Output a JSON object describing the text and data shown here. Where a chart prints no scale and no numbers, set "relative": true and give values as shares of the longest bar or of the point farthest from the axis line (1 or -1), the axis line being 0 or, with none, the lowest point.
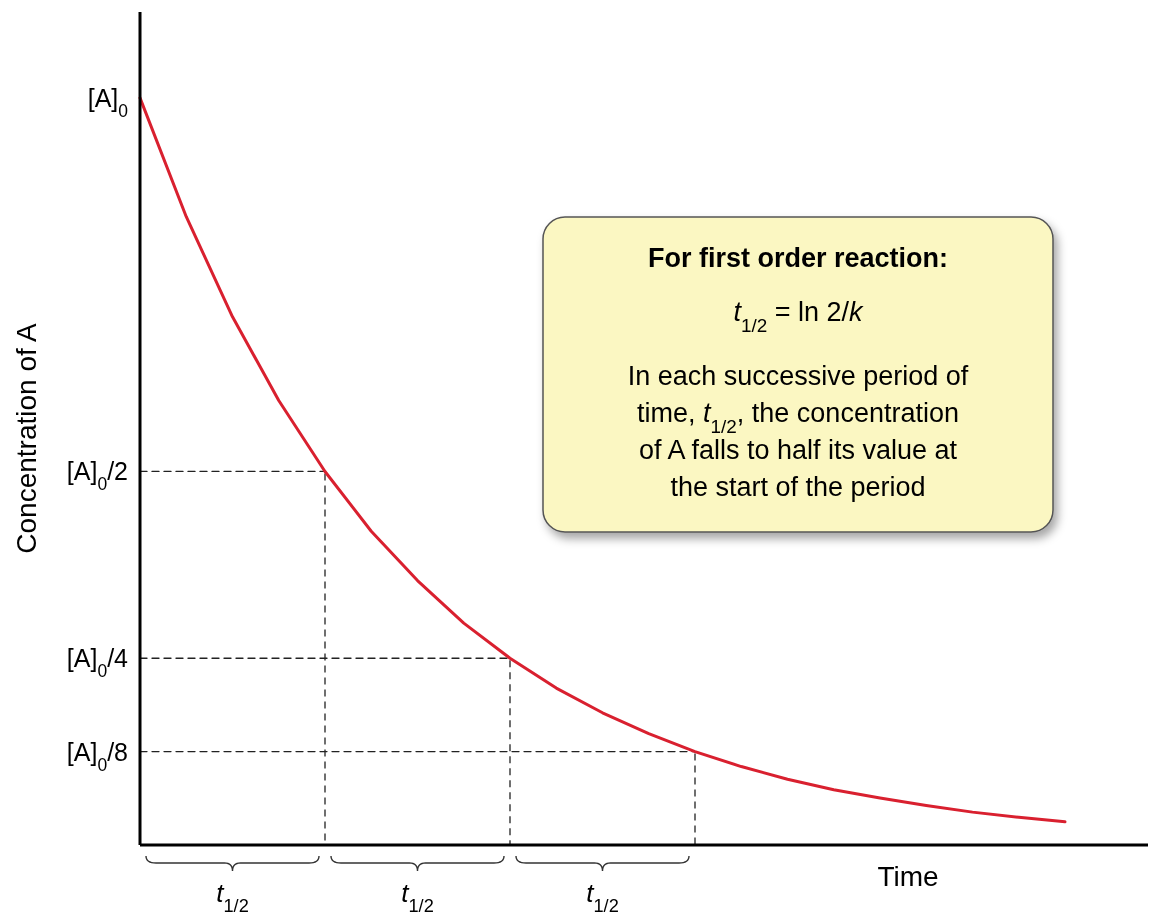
{
  "chart_data": {
    "type": "line",
    "xlabel": "Time",
    "ylabel": "Concentration of A",
    "relative": true,
    "categories": [
      null,
      null,
      null,
      null,
      null,
      null,
      null,
      null,
      null,
      null,
      null,
      null,
      null,
      null,
      null,
      null,
      null,
      null,
      null,
      null,
      null
    ],
    "grid": false,
    "marker": "none",
    "series": [
      {
        "color": "#d9202f",
        "line_style": "solid",
        "values": [
          1,
          0.841,
          0.707,
          0.595,
          0.5,
          0.42,
          0.354,
          0.297,
          0.25,
          0.21,
          0.177,
          0.149,
          0.125,
          0.105,
          0.088,
          0.074,
          0.063,
          0.053,
          0.044,
          0.037,
          0.031
        ]
      },
      {
        "color": "#222222",
        "line_style": "dashed",
        "values": [
          0.5,
          0.5,
          0.5,
          0.5,
          0.5,
          null,
          null,
          null,
          null,
          null,
          null,
          null,
          null,
          null,
          null,
          null,
          null,
          null,
          null,
          null,
          null
        ]
      },
      {
        "color": "#222222",
        "line_style": "dashed",
        "values": [
          0.25,
          0.25,
          0.25,
          0.25,
          0.25,
          0.25,
          0.25,
          0.25,
          0.25,
          null,
          null,
          null,
          null,
          null,
          null,
          null,
          null,
          null,
          null,
          null,
          null
        ]
      },
      {
        "color": "#222222",
        "line_style": "dashed",
        "values": [
          0.125,
          0.125,
          0.125,
          0.125,
          0.125,
          0.125,
          0.125,
          0.125,
          0.125,
          0.125,
          0.125,
          0.125,
          0.125,
          null,
          null,
          null,
          null,
          null,
          null,
          null,
          null
        ]
      }
    ],
    "annotations": [
      "For first order reaction:",
      "t$_{1/2}$ = ln 2/k",
      "In each successive period of time, t$_{1/2}$, the concentration of A falls to half its value at the start of the period",
      "t$_{1/2}$",
      "t$_{1/2}$",
      "t$_{1/2}$",
      "[A]$_{0}$",
      "[A]$_{0}$/2",
      "[A]$_{0}$/4",
      "[A]$_{0}$/8"
    ]
  }
}
